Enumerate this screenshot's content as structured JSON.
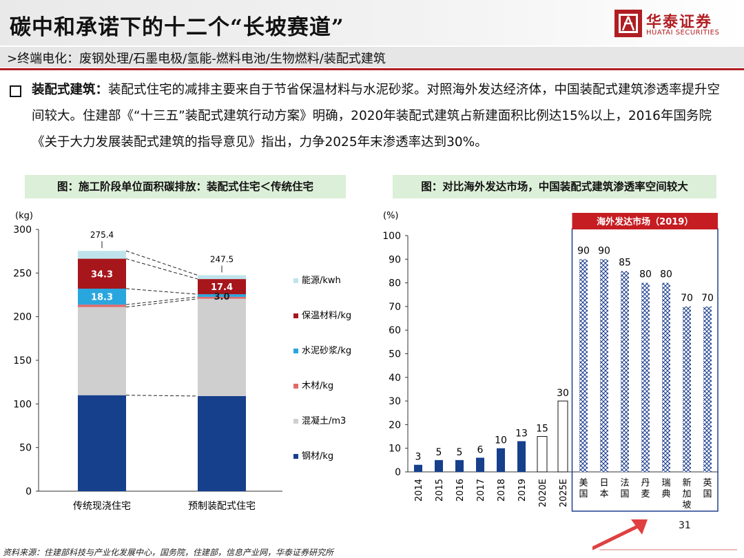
{
  "title": "碳中和承诺下的十二个“长坡赛道”",
  "logo": {
    "cn": "华泰证券",
    "en": "HUATAI SECURITIES"
  },
  "subtitle": ">终端电化：废钢处理/石墨电极/氢能-燃料电池/生物燃料/装配式建筑",
  "paragraph": {
    "lead": "装配式建筑：",
    "body": "装配式住宅的减排主要来自于节省保温材料与水泥砂浆。对照海外发达经济体，中国装配式建筑渗透率提升空间较大。住建部《“十三五”装配式建筑行动方案》明确，2020年装配式建筑占新建面积比例达15%以上，2016年国务院《关于大力发展装配式建筑的指导意见》指出，力争2025年末渗透率达到30%。"
  },
  "caption_left": "图：施工阶段单位面积碳排放：装配式住宅＜传统住宅",
  "caption_right": "图：对比海外发达市场，中国装配式建筑渗透率空间较大",
  "page_number": "31",
  "source": "资料来源：住建部科技与产业化发展中心，国务院，住建部，信息产业网，华泰证券研究所",
  "colors": {
    "steel": "#163f8c",
    "concrete": "#cfcfcf",
    "wood": "#e06a6a",
    "mortar": "#2aa6de",
    "insulation": "#a6161b",
    "energy": "#bfe3ec",
    "accent": "#b01e23"
  },
  "chart_data": [
    {
      "type": "bar",
      "stacked": true,
      "unit_label": "(kg)",
      "ylim": [
        0,
        300
      ],
      "yticks": [
        0,
        50,
        100,
        150,
        200,
        250,
        300
      ],
      "categories": [
        "传统现浇住宅",
        "预制装配式住宅"
      ],
      "totals": [
        275.4,
        247.5
      ],
      "total_labels": [
        "275.4",
        "247.5"
      ],
      "series": [
        {
          "name": "钢材/kg",
          "color": "#163f8c",
          "values": [
            110,
            109
          ]
        },
        {
          "name": "混凝土/m3",
          "color": "#cfcfcf",
          "values": [
            101,
            111.5
          ]
        },
        {
          "name": "木材/kg",
          "color": "#e06a6a",
          "values": [
            2.8,
            2.2
          ]
        },
        {
          "name": "水泥砂浆/kg",
          "color": "#2aa6de",
          "values": [
            18.3,
            3.0
          ]
        },
        {
          "name": "保温材料/kg",
          "color": "#a6161b",
          "values": [
            34.3,
            17.4
          ]
        },
        {
          "name": "能源/kwh",
          "color": "#bfe3ec",
          "values": [
            9.0,
            4.4
          ]
        }
      ],
      "data_labels": [
        {
          "series": "保温材料/kg",
          "category": "传统现浇住宅",
          "text": "34.3"
        },
        {
          "series": "水泥砂浆/kg",
          "category": "传统现浇住宅",
          "text": "18.3"
        },
        {
          "series": "保温材料/kg",
          "category": "预制装配式住宅",
          "text": "17.4"
        },
        {
          "series": "水泥砂浆/kg",
          "category": "预制装配式住宅",
          "text": "3.0"
        }
      ],
      "legend_order": [
        "能源/kwh",
        "保温材料/kg",
        "水泥砂浆/kg",
        "木材/kg",
        "混凝土/m3",
        "钢材/kg"
      ]
    },
    {
      "type": "bar",
      "unit_label": "(%)",
      "ylim": [
        0,
        100
      ],
      "yticks": [
        0,
        10,
        20,
        30,
        40,
        50,
        60,
        70,
        80,
        90,
        100
      ],
      "china": {
        "categories": [
          "2014",
          "2015",
          "2016",
          "2017",
          "2018",
          "2019",
          "2020E",
          "2025E"
        ],
        "values": [
          3,
          5,
          5,
          6,
          10,
          13,
          15,
          30
        ],
        "estimate": [
          false,
          false,
          false,
          false,
          false,
          false,
          true,
          true
        ]
      },
      "overseas": {
        "box_title": "海外发达市场（2019）",
        "categories": [
          "美国",
          "日本",
          "法国",
          "丹麦",
          "瑞典",
          "新加坡",
          "英国"
        ],
        "values": [
          90,
          90,
          85,
          80,
          80,
          70,
          70
        ]
      }
    }
  ]
}
